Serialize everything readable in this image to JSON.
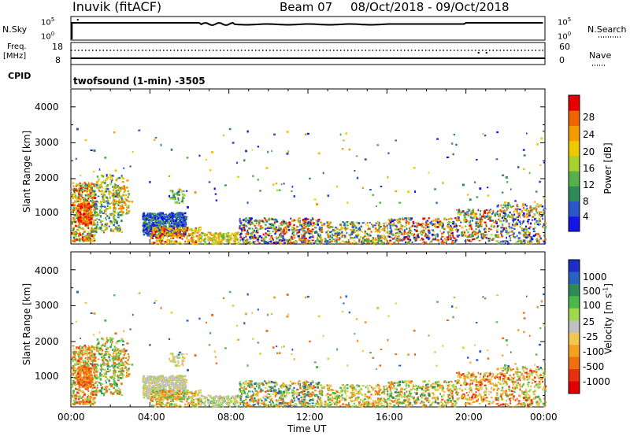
{
  "header": {
    "station": "Inuvik (fitACF)",
    "beam": "Beam 07",
    "dates": "08/Oct/2018 - 09/Oct/2018"
  },
  "top_panels": {
    "nsky_label": "N.Sky",
    "nsearch_label": "N.Search",
    "noise_ticks_left": [
      "10^5",
      "10^0"
    ],
    "noise_ticks_right": [
      "10^5",
      "10^0"
    ],
    "freq_label": "Freq.",
    "freq_unit": "[MHz]",
    "freq_ticks": [
      "18",
      "8"
    ],
    "nave_ticks": [
      "60",
      "0"
    ],
    "nave_label": "Nave",
    "cpid_label": "CPID",
    "cpid_text": "twofsound (1-min) -3505"
  },
  "colors": {
    "power": [
      "#1414e6",
      "#2b55c8",
      "#2e8b57",
      "#57b04a",
      "#a8d02e",
      "#f0c800",
      "#f59a00",
      "#f06400",
      "#e60000"
    ],
    "velocity": [
      "#1e2fc8",
      "#2a62c0",
      "#2e8b57",
      "#4ab84a",
      "#a0d850",
      "#c0c0c0",
      "#f0c850",
      "#f5a020",
      "#f07010",
      "#e83010",
      "#e00000"
    ]
  },
  "chart_data": [
    {
      "type": "heatmap",
      "name": "power",
      "ylabel": "Slant Range [km]",
      "xlabel": "",
      "ylim": [
        180,
        4500
      ],
      "yticks": [
        "1000",
        "2000",
        "3000",
        "4000"
      ],
      "xticks": [
        "00:00",
        "04:00",
        "08:00",
        "12:00",
        "16:00",
        "20:00",
        "00:00"
      ],
      "xlim_hours": [
        0,
        24
      ],
      "colorbar_label": "Power [dB]",
      "colorbar_ticks": [
        "4",
        "8",
        "12",
        "16",
        "20",
        "24",
        "28"
      ],
      "colorbar_range": [
        0,
        30
      ]
    },
    {
      "type": "heatmap",
      "name": "velocity",
      "ylabel": "Slant Range [km]",
      "xlabel": "Time UT",
      "ylim": [
        180,
        4500
      ],
      "yticks": [
        "1000",
        "2000",
        "3000",
        "4000"
      ],
      "xticks": [
        "00:00",
        "04:00",
        "08:00",
        "12:00",
        "16:00",
        "20:00",
        "00:00"
      ],
      "xlim_hours": [
        0,
        24
      ],
      "colorbar_label": "Velocity [m s^-1]",
      "colorbar_ticks": [
        "1000",
        "500",
        "100",
        "25",
        "-25",
        "-100",
        "-500",
        "-1000"
      ]
    }
  ]
}
